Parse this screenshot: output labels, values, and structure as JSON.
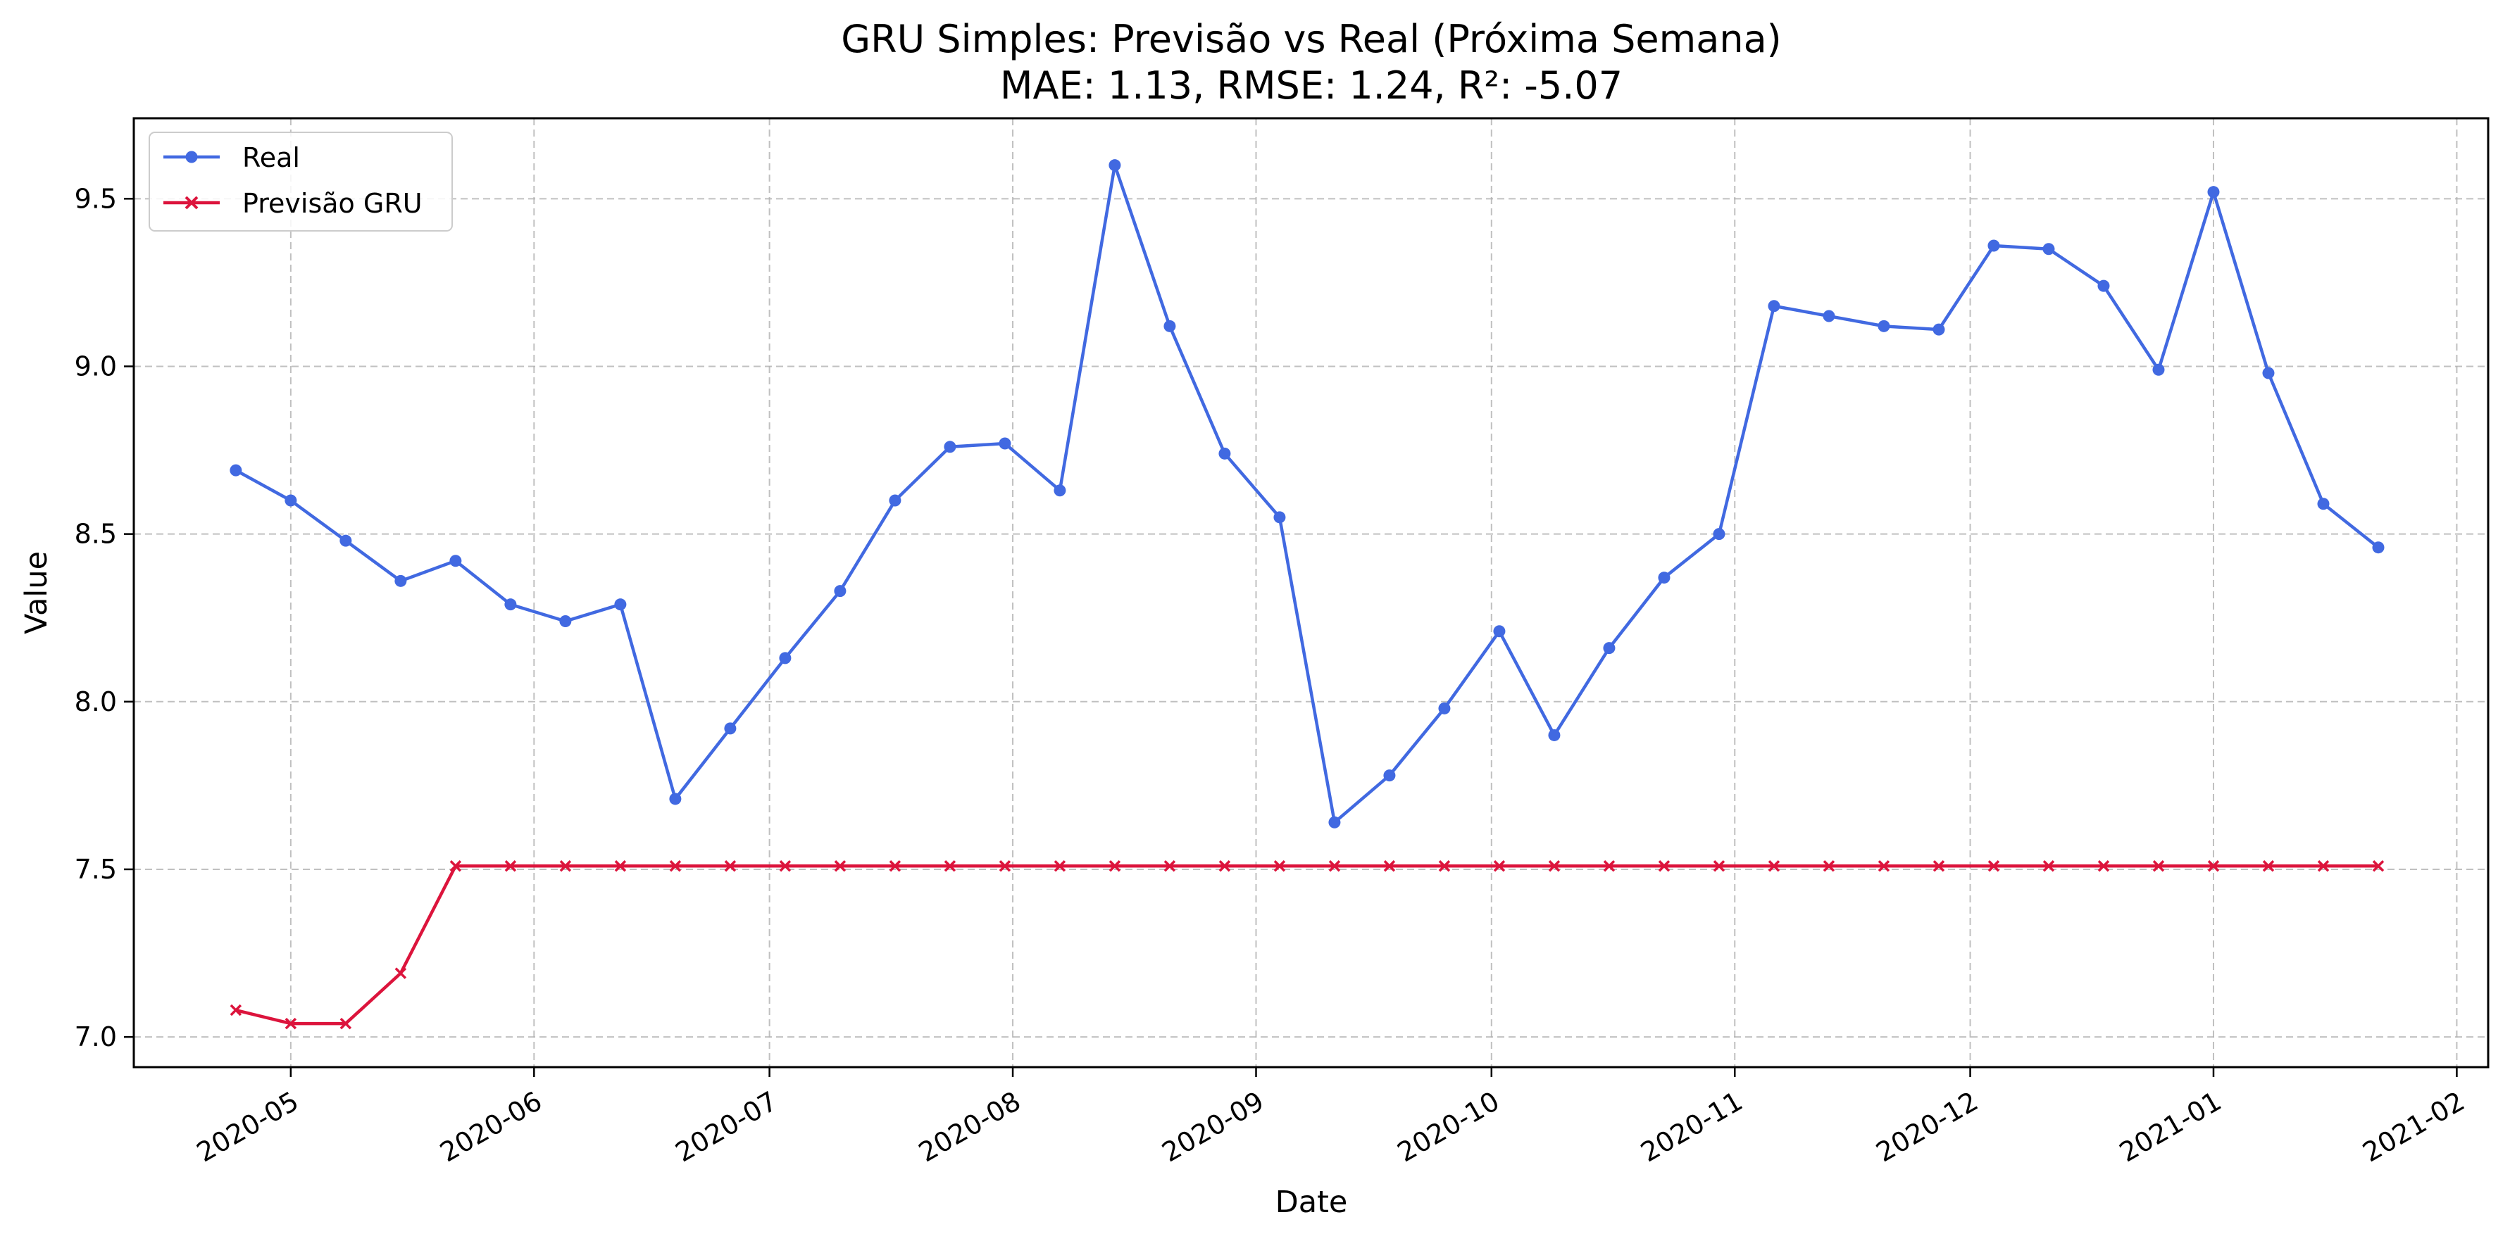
{
  "chart_data": {
    "type": "line",
    "title": "GRU Simples: Previsão vs Real (Próxima Semana)",
    "subtitle": "MAE: 1.13, RMSE: 1.24, R²: -5.07",
    "xlabel": "Date",
    "ylabel": "Value",
    "xlim": [
      "2020-04-11",
      "2021-02-05"
    ],
    "ylim": [
      6.91,
      9.74
    ],
    "grid": true,
    "legend_position": "top-left",
    "x_ticks": [
      "2020-05",
      "2020-06",
      "2020-07",
      "2020-08",
      "2020-09",
      "2020-10",
      "2020-11",
      "2020-12",
      "2021-01",
      "2021-02"
    ],
    "y_ticks": [
      "7.0",
      "7.5",
      "8.0",
      "8.5",
      "9.0",
      "9.5"
    ],
    "x": [
      "2020-04-24",
      "2020-05-01",
      "2020-05-08",
      "2020-05-15",
      "2020-05-22",
      "2020-05-29",
      "2020-06-05",
      "2020-06-12",
      "2020-06-19",
      "2020-06-26",
      "2020-07-03",
      "2020-07-10",
      "2020-07-17",
      "2020-07-24",
      "2020-07-31",
      "2020-08-07",
      "2020-08-14",
      "2020-08-21",
      "2020-08-28",
      "2020-09-04",
      "2020-09-11",
      "2020-09-18",
      "2020-09-25",
      "2020-10-02",
      "2020-10-09",
      "2020-10-16",
      "2020-10-23",
      "2020-10-30",
      "2020-11-06",
      "2020-11-13",
      "2020-11-20",
      "2020-11-27",
      "2020-12-04",
      "2020-12-11",
      "2020-12-18",
      "2020-12-25",
      "2021-01-01",
      "2021-01-08",
      "2021-01-15",
      "2021-01-22"
    ],
    "series": [
      {
        "name": "Real",
        "color": "#4169e1",
        "marker": "circle",
        "values": [
          8.69,
          8.6,
          8.48,
          8.36,
          8.42,
          8.29,
          8.24,
          8.29,
          7.71,
          7.92,
          8.13,
          8.33,
          8.6,
          8.76,
          8.77,
          8.63,
          9.6,
          9.12,
          8.74,
          8.55,
          7.64,
          7.78,
          7.98,
          8.21,
          7.9,
          8.16,
          8.37,
          8.5,
          9.18,
          9.15,
          9.12,
          9.11,
          9.36,
          9.35,
          9.24,
          8.99,
          9.52,
          8.98,
          8.59,
          8.46
        ]
      },
      {
        "name": "Previsão GRU",
        "color": "#dc143c",
        "marker": "x",
        "values": [
          7.08,
          7.04,
          7.04,
          7.19,
          7.51,
          7.51,
          7.51,
          7.51,
          7.51,
          7.51,
          7.51,
          7.51,
          7.51,
          7.51,
          7.51,
          7.51,
          7.51,
          7.51,
          7.51,
          7.51,
          7.51,
          7.51,
          7.51,
          7.51,
          7.51,
          7.51,
          7.51,
          7.51,
          7.51,
          7.51,
          7.51,
          7.51,
          7.51,
          7.51,
          7.51,
          7.51,
          7.51,
          7.51,
          7.51,
          7.51
        ]
      }
    ]
  }
}
